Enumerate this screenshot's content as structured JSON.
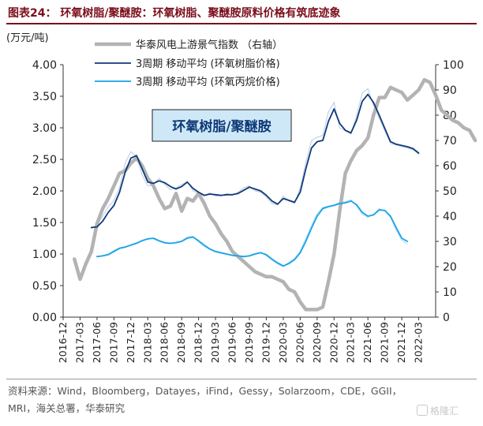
{
  "figure": {
    "title": "图表24：  环氧树脂/聚醚胺：环氧树脂、聚醚胺原料价格有筑底迹象",
    "source": "资料来源：Wind，Bloomberg，Datayes，iFind，Gessy，Solarzoom，CDE，GGII，MRI，海关总署，华泰研究",
    "watermark": "格隆汇"
  },
  "chart_data": {
    "type": "line",
    "title": "",
    "box_label": "环氧树脂/聚醚胺",
    "left_axis": {
      "unit": "(万元/吨)",
      "ylim": [
        0,
        4
      ],
      "ticks": [
        "0.00",
        "0.50",
        "1.00",
        "1.50",
        "2.00",
        "2.50",
        "3.00",
        "3.50",
        "4.00"
      ]
    },
    "right_axis": {
      "ylim": [
        0,
        100
      ],
      "ticks": [
        "0",
        "10",
        "20",
        "30",
        "40",
        "50",
        "60",
        "70",
        "80",
        "90",
        "100"
      ]
    },
    "x_ticks": [
      "2016-12",
      "2017-03",
      "2017-06",
      "2017-09",
      "2017-12",
      "2018-03",
      "2018-06",
      "2018-09",
      "2018-12",
      "2019-03",
      "2019-06",
      "2019-09",
      "2019-12",
      "2020-03",
      "2020-06",
      "2020-09",
      "2020-12",
      "2021-03",
      "2021-06",
      "2021-09",
      "2021-12",
      "2022-03"
    ],
    "grid": false,
    "legend_position": "top-right",
    "colors": {
      "pmi": "#b3b3b3",
      "epoxy": "#0f3a78",
      "pep": "#1aa3e8",
      "box_bg": "#cfe8f7",
      "box_text": "#0f3a78"
    },
    "series": [
      {
        "name": "华泰风电上游景气指数 （右轴）",
        "axis": "right",
        "start": "2017-02",
        "values": [
          23,
          15,
          21,
          26,
          37,
          43,
          47,
          52,
          57,
          58,
          61,
          63,
          60,
          55,
          52,
          47,
          43,
          44,
          49,
          42,
          47,
          46,
          49,
          45,
          40,
          37,
          33,
          30,
          26,
          24,
          22,
          20,
          18,
          17,
          16,
          16,
          15,
          14,
          11,
          10,
          6,
          3,
          3,
          3,
          4,
          14,
          25,
          42,
          57,
          62,
          66,
          68,
          71,
          80,
          87,
          87,
          91,
          90,
          89,
          86,
          88,
          90,
          94,
          93,
          88,
          82,
          80,
          78,
          77,
          75,
          74,
          70
        ]
      },
      {
        "name": "3周期 移动平均 (环氧树脂价格)",
        "axis": "left",
        "start": "2017-05",
        "values": [
          1.42,
          1.43,
          1.52,
          1.66,
          1.77,
          1.98,
          2.3,
          2.52,
          2.56,
          2.35,
          2.14,
          2.12,
          2.16,
          2.13,
          2.07,
          2.03,
          2.07,
          2.14,
          2.04,
          1.98,
          1.93,
          1.95,
          1.94,
          1.93,
          1.94,
          1.94,
          1.96,
          2.01,
          2.06,
          2.03,
          2.0,
          1.93,
          1.84,
          1.79,
          1.88,
          1.85,
          1.82,
          1.98,
          2.35,
          2.68,
          2.78,
          2.8,
          3.1,
          3.3,
          3.07,
          2.96,
          2.92,
          3.12,
          3.42,
          3.53,
          3.4,
          3.2,
          2.99,
          2.78,
          2.74,
          2.72,
          2.7,
          2.67,
          2.6
        ]
      },
      {
        "name": "3周期 移动平均 (环氧丙烷价格)",
        "axis": "left",
        "start": "2017-06",
        "values": [
          0.96,
          0.97,
          0.99,
          1.04,
          1.09,
          1.11,
          1.14,
          1.17,
          1.21,
          1.24,
          1.25,
          1.21,
          1.18,
          1.17,
          1.18,
          1.2,
          1.25,
          1.27,
          1.21,
          1.14,
          1.08,
          1.04,
          1.02,
          1.0,
          0.98,
          0.97,
          0.96,
          0.97,
          1.0,
          1.02,
          0.99,
          0.92,
          0.86,
          0.81,
          0.85,
          0.91,
          1.02,
          1.2,
          1.41,
          1.6,
          1.72,
          1.75,
          1.77,
          1.8,
          1.81,
          1.84,
          1.78,
          1.66,
          1.6,
          1.62,
          1.7,
          1.69,
          1.6,
          1.42,
          1.25,
          1.2
        ]
      }
    ],
    "thin_overlays": [
      {
        "of": "epoxy",
        "color": "#b9cae6",
        "start": "2017-05",
        "values": [
          1.4,
          1.46,
          1.6,
          1.75,
          1.85,
          2.05,
          2.45,
          2.62,
          2.55,
          2.25,
          2.08,
          2.1,
          2.2,
          2.1,
          2.02,
          2.05,
          2.1,
          2.15,
          2.0,
          1.96,
          1.92,
          1.97,
          1.92,
          1.92,
          1.96,
          1.93,
          1.98,
          2.05,
          2.08,
          2.0,
          1.98,
          1.9,
          1.8,
          1.78,
          1.92,
          1.84,
          1.8,
          2.05,
          2.45,
          2.8,
          2.85,
          2.88,
          3.25,
          3.4,
          3.0,
          2.95,
          2.9,
          3.2,
          3.55,
          3.62,
          3.35,
          3.15,
          2.95,
          2.75,
          2.73,
          2.7,
          2.68,
          2.65,
          2.58
        ]
      },
      {
        "of": "pep",
        "color": "#a8ddf6",
        "start": "2017-06",
        "values": [
          0.95,
          0.98,
          1.0,
          1.06,
          1.1,
          1.12,
          1.15,
          1.18,
          1.22,
          1.25,
          1.24,
          1.2,
          1.17,
          1.16,
          1.19,
          1.21,
          1.27,
          1.28,
          1.19,
          1.12,
          1.07,
          1.03,
          1.01,
          0.99,
          0.97,
          0.96,
          0.95,
          0.98,
          1.01,
          1.03,
          0.97,
          0.9,
          0.84,
          0.8,
          0.87,
          0.93,
          1.05,
          1.25,
          1.45,
          1.64,
          1.74,
          1.76,
          1.78,
          1.82,
          1.83,
          1.86,
          1.76,
          1.63,
          1.58,
          1.63,
          1.72,
          1.68,
          1.58,
          1.38,
          1.22,
          1.16
        ]
      }
    ]
  }
}
